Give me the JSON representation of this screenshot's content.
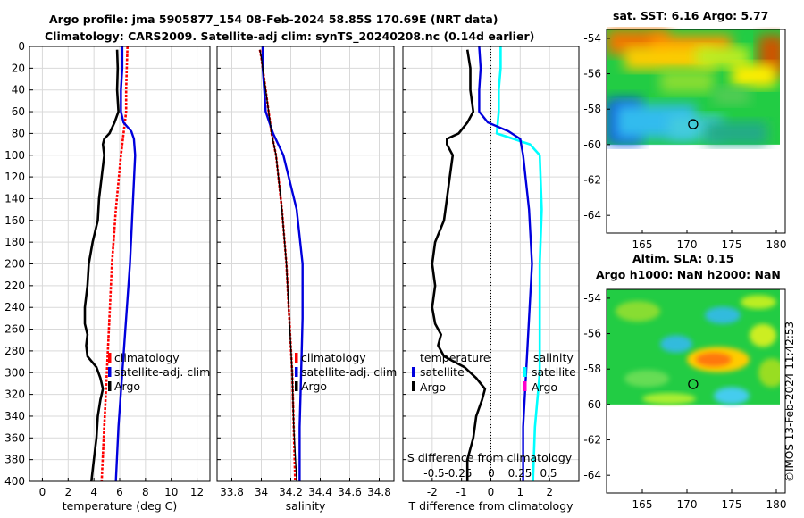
{
  "title_line1": "Argo profile: jma 5905877_154 08-Feb-2024 58.85S 170.69E (NRT data)",
  "title_line2": "Climatology: CARS2009. Satellite-adj clim: synTS_20240208.nc (0.14d earlier)",
  "sst_title": "sat. SST: 6.16 Argo: 5.77",
  "sla_title_1": "Altim. SLA: 0.15",
  "sla_title_2": "Argo h1000: NaN h2000: NaN",
  "credit": "©IMOS 13-Feb-2024 11:42:53",
  "colors": {
    "argo": "#000000",
    "clim": "#ff0000",
    "satclim": "#0000dd",
    "sal_diff": "#00ffff",
    "sal_diff_legend": "#ff00cc"
  },
  "chart_data": [
    {
      "type": "line",
      "name": "temperature",
      "xlabel": "temperature (deg C)",
      "ylabel": "depth",
      "xlim": [
        -1,
        13
      ],
      "ylim": [
        400,
        0
      ],
      "xticks": [
        0,
        2,
        4,
        6,
        8,
        10,
        12
      ],
      "yticks": [
        0,
        20,
        40,
        60,
        80,
        100,
        120,
        140,
        160,
        180,
        200,
        220,
        240,
        260,
        280,
        300,
        320,
        340,
        360,
        380,
        400
      ],
      "legend": [
        "climatology",
        "satellite-adj. clim",
        "Argo"
      ],
      "series": [
        {
          "name": "climatology",
          "depth": [
            0,
            20,
            40,
            60,
            70,
            80,
            100,
            150,
            200,
            250,
            300,
            350,
            400
          ],
          "values": [
            6.6,
            6.55,
            6.5,
            6.5,
            6.4,
            6.3,
            6.1,
            5.7,
            5.4,
            5.2,
            5.0,
            4.8,
            4.6
          ]
        },
        {
          "name": "satellite-adj. clim",
          "depth": [
            0,
            20,
            40,
            60,
            70,
            78,
            85,
            100,
            150,
            200,
            250,
            300,
            350,
            400
          ],
          "values": [
            6.2,
            6.2,
            6.1,
            6.1,
            6.3,
            6.9,
            7.1,
            7.2,
            7.0,
            6.8,
            6.5,
            6.2,
            5.9,
            5.7
          ]
        },
        {
          "name": "Argo",
          "depth": [
            3,
            20,
            40,
            60,
            70,
            80,
            85,
            90,
            100,
            120,
            140,
            160,
            180,
            200,
            220,
            240,
            255,
            265,
            275,
            285,
            295,
            305,
            315,
            325,
            340,
            360,
            380,
            400
          ],
          "values": [
            5.8,
            5.85,
            5.8,
            5.9,
            5.6,
            5.2,
            4.8,
            4.7,
            4.8,
            4.6,
            4.4,
            4.3,
            3.9,
            3.6,
            3.5,
            3.3,
            3.3,
            3.5,
            3.4,
            3.5,
            4.2,
            4.5,
            4.7,
            4.5,
            4.3,
            4.2,
            4.0,
            3.8
          ]
        }
      ]
    },
    {
      "type": "line",
      "name": "salinity",
      "xlabel": "salinity",
      "ylabel": "depth",
      "xlim": [
        33.7,
        34.9
      ],
      "ylim": [
        400,
        0
      ],
      "xticks": [
        33.8,
        34.0,
        34.2,
        34.4,
        34.6,
        34.8
      ],
      "xticklabels": [
        "33.8",
        "34",
        "34.2",
        "34.4",
        "34.6",
        "34.8"
      ],
      "legend": [
        "climatology",
        "satellite-adj. clim",
        "Argo"
      ],
      "series": [
        {
          "name": "climatology",
          "depth": [
            3,
            10,
            20,
            40,
            60,
            80,
            100,
            150,
            200,
            250,
            300,
            350,
            400
          ],
          "values": [
            33.99,
            34.0,
            34.01,
            34.03,
            34.05,
            34.07,
            34.1,
            34.14,
            34.17,
            34.19,
            34.21,
            34.22,
            34.23
          ]
        },
        {
          "name": "satellite-adj. clim",
          "depth": [
            0,
            10,
            20,
            40,
            60,
            80,
            100,
            150,
            200,
            250,
            300,
            350,
            400
          ],
          "values": [
            34.01,
            34.01,
            34.01,
            34.02,
            34.03,
            34.08,
            34.15,
            34.24,
            34.28,
            34.28,
            34.27,
            34.26,
            34.26
          ]
        },
        {
          "name": "Argo",
          "depth": [
            3,
            10,
            20,
            40,
            60,
            80,
            100,
            150,
            200,
            250,
            300,
            350,
            400
          ],
          "values": [
            33.99,
            34.0,
            34.01,
            34.03,
            34.05,
            34.07,
            34.1,
            34.14,
            34.17,
            34.19,
            34.21,
            34.22,
            34.24
          ]
        }
      ]
    },
    {
      "type": "line",
      "name": "difference",
      "xlabel": "T difference from climatology",
      "xlim": [
        -3,
        3
      ],
      "ylim": [
        400,
        0
      ],
      "xticks": [
        -2,
        -1,
        0,
        1,
        2
      ],
      "top_label": "S difference from climatology",
      "s_ticklabels": [
        "-0.5",
        "-0.25",
        "0",
        "0.25",
        "0.5"
      ],
      "legend_left": [
        "temperature",
        "satellite",
        "Argo"
      ],
      "legend_right": [
        "salinity",
        "satellite",
        "Argo"
      ],
      "series": [
        {
          "name": "temperature satellite",
          "depth": [
            0,
            20,
            40,
            60,
            70,
            78,
            85,
            100,
            150,
            200,
            250,
            300,
            350,
            400
          ],
          "values": [
            -0.4,
            -0.35,
            -0.4,
            -0.4,
            -0.1,
            0.6,
            1.0,
            1.1,
            1.3,
            1.4,
            1.3,
            1.2,
            1.1,
            1.1
          ]
        },
        {
          "name": "temperature Argo",
          "depth": [
            3,
            20,
            40,
            60,
            70,
            80,
            85,
            90,
            100,
            120,
            140,
            160,
            180,
            200,
            220,
            240,
            255,
            265,
            275,
            285,
            295,
            305,
            315,
            325,
            340,
            360,
            380,
            400
          ],
          "values": [
            -0.8,
            -0.7,
            -0.7,
            -0.6,
            -0.8,
            -1.1,
            -1.5,
            -1.5,
            -1.3,
            -1.4,
            -1.5,
            -1.6,
            -1.9,
            -2.0,
            -1.9,
            -2.0,
            -1.9,
            -1.7,
            -1.8,
            -1.6,
            -0.9,
            -0.5,
            -0.2,
            -0.3,
            -0.5,
            -0.6,
            -0.8,
            -0.8
          ]
        },
        {
          "name": "salinity satellite",
          "depth": [
            0,
            20,
            40,
            60,
            80,
            90,
            100,
            150,
            200,
            250,
            300,
            350,
            400
          ],
          "values": [
            0.1,
            0.1,
            0.08,
            0.08,
            0.06,
            0.4,
            0.5,
            0.52,
            0.5,
            0.5,
            0.5,
            0.45,
            0.43
          ]
        },
        {
          "name": "salinity Argo",
          "depth": [
            3,
            20,
            60,
            100,
            200,
            300,
            400
          ],
          "values": [
            0,
            0,
            0,
            0,
            0,
            0,
            0
          ]
        }
      ]
    },
    {
      "type": "heatmap",
      "name": "sst_map",
      "title": "sat. SST: 6.16 Argo: 5.77",
      "xlim": [
        161,
        181
      ],
      "ylim": [
        -65,
        -53.5
      ],
      "xticks": [
        165,
        170,
        175,
        180
      ],
      "yticks": [
        -54,
        -56,
        -58,
        -60,
        -62,
        -64
      ],
      "data_extent": {
        "lat": [
          -60,
          -53.5
        ]
      },
      "argo_position": {
        "lon": 170.69,
        "lat": -58.85
      }
    },
    {
      "type": "heatmap",
      "name": "sla_map",
      "title": "Altim. SLA: 0.15",
      "xlim": [
        161,
        181
      ],
      "ylim": [
        -65,
        -53.5
      ],
      "xticks": [
        165,
        170,
        175,
        180
      ],
      "yticks": [
        -54,
        -56,
        -58,
        -60,
        -62,
        -64
      ],
      "data_extent": {
        "lat": [
          -60,
          -53.5
        ]
      },
      "argo_position": {
        "lon": 170.69,
        "lat": -58.85
      }
    }
  ]
}
